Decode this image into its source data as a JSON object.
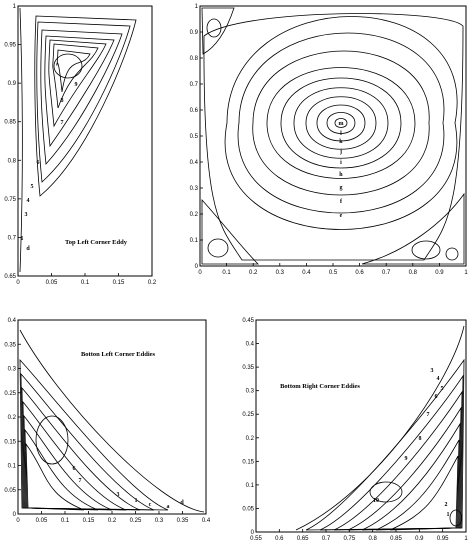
{
  "chart_data": [
    {
      "type": "contour",
      "title": "",
      "xlim": [
        0,
        1
      ],
      "ylim": [
        0,
        1
      ],
      "xticks": [
        "0",
        "0.1",
        "0.2",
        "0.3",
        "0.4",
        "0.5",
        "0.6",
        "0.7",
        "0.8",
        "0.9",
        "1"
      ],
      "yticks": [
        "0",
        "0.1",
        "0.2",
        "0.3",
        "0.4",
        "0.5",
        "0.6",
        "0.7",
        "0.8",
        "0.9",
        "1"
      ],
      "center": [
        0.53,
        0.55
      ],
      "contour_labels": [
        "m",
        "l",
        "k",
        "j",
        "i",
        "h",
        "g",
        "f",
        "e"
      ],
      "corner_eddies": [
        "top-left",
        "bottom-left",
        "bottom-right"
      ]
    },
    {
      "type": "contour",
      "title": "Top Left Corner Eddy",
      "xlim": [
        0,
        0.2
      ],
      "ylim": [
        0.6,
        1
      ],
      "xticks": [
        "0",
        "0.05",
        "0.1",
        "0.15",
        "0.2"
      ],
      "yticks": [
        "0.65",
        "0.7",
        "0.75",
        "0.8",
        "0.85",
        "0.9",
        "0.95",
        "1"
      ],
      "contour_labels": [
        "9",
        "8",
        "7",
        "6",
        "5",
        "4",
        "3",
        "1",
        "d"
      ]
    },
    {
      "type": "contour",
      "title": "Botton Left Corner Eddies",
      "xlim": [
        0,
        0.4
      ],
      "ylim": [
        0,
        0.4
      ],
      "xticks": [
        "0",
        "0.05",
        "0.1",
        "0.15",
        "0.2",
        "0.25",
        "0.3",
        "0.35",
        "0.4"
      ],
      "yticks": [
        "0",
        "0.05",
        "0.1",
        "0.15",
        "0.2",
        "0.25",
        "0.3",
        "0.35",
        "0.4"
      ],
      "contour_labels": [
        "6",
        "7",
        "3",
        "1",
        "c",
        "a",
        "d"
      ]
    },
    {
      "type": "contour",
      "title": "Bottom Right Corner Eddies",
      "xlim": [
        0.55,
        1
      ],
      "ylim": [
        0,
        0.45
      ],
      "xticks": [
        "0.55",
        "0.6",
        "0.65",
        "0.7",
        "0.75",
        "0.8",
        "0.85",
        "0.9",
        "0.95",
        "1"
      ],
      "yticks": [
        "0",
        "0.05",
        "0.1",
        "0.15",
        "0.2",
        "0.25",
        "0.3",
        "0.35",
        "0.4",
        "0.45"
      ],
      "contour_labels": [
        "10",
        "9",
        "8",
        "7",
        "6",
        "4",
        "3",
        "5",
        "2",
        "1"
      ]
    }
  ]
}
